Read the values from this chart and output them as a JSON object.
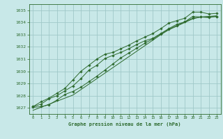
{
  "title": "Graphe pression niveau de la mer (hPa)",
  "bg_color": "#c8e8e8",
  "grid_color": "#a0c8c8",
  "line_color": "#2d6a2d",
  "xlim": [
    -0.5,
    23.5
  ],
  "ylim": [
    1026.5,
    1035.5
  ],
  "yticks": [
    1027,
    1028,
    1029,
    1030,
    1031,
    1032,
    1033,
    1034,
    1035
  ],
  "xticks": [
    0,
    1,
    2,
    3,
    4,
    5,
    6,
    7,
    8,
    9,
    10,
    11,
    12,
    13,
    14,
    15,
    16,
    17,
    18,
    19,
    20,
    21,
    22,
    23
  ],
  "series_with_markers": [
    [
      1027.1,
      1027.5,
      1027.8,
      1028.2,
      1028.6,
      1029.3,
      1030.0,
      1030.5,
      1031.0,
      1031.4,
      1031.55,
      1031.85,
      1032.15,
      1032.5,
      1032.8,
      1033.1,
      1033.5,
      1033.95,
      1034.15,
      1034.35,
      1034.85,
      1034.85,
      1034.7,
      1034.75
    ],
    [
      1027.1,
      1027.3,
      1027.75,
      1028.0,
      1028.4,
      1028.8,
      1029.4,
      1030.1,
      1030.5,
      1031.05,
      1031.3,
      1031.55,
      1031.85,
      1032.2,
      1032.5,
      1032.7,
      1033.1,
      1033.5,
      1033.85,
      1034.05,
      1034.5,
      1034.45,
      1034.4,
      1034.5
    ],
    [
      1027.05,
      1027.1,
      1027.25,
      1027.65,
      1028.1,
      1028.35,
      1028.7,
      1029.15,
      1029.6,
      1030.1,
      1030.6,
      1031.1,
      1031.5,
      1031.9,
      1032.3,
      1032.65,
      1033.05,
      1033.45,
      1033.75,
      1034.05,
      1034.35,
      1034.45,
      1034.45,
      1034.5
    ]
  ],
  "series_plain": [
    [
      1026.8,
      1027.05,
      1027.3,
      1027.55,
      1027.8,
      1028.05,
      1028.5,
      1028.95,
      1029.4,
      1029.85,
      1030.3,
      1030.75,
      1031.2,
      1031.65,
      1032.1,
      1032.55,
      1033.0,
      1033.4,
      1033.7,
      1034.0,
      1034.3,
      1034.45,
      1034.5,
      1034.55
    ]
  ]
}
